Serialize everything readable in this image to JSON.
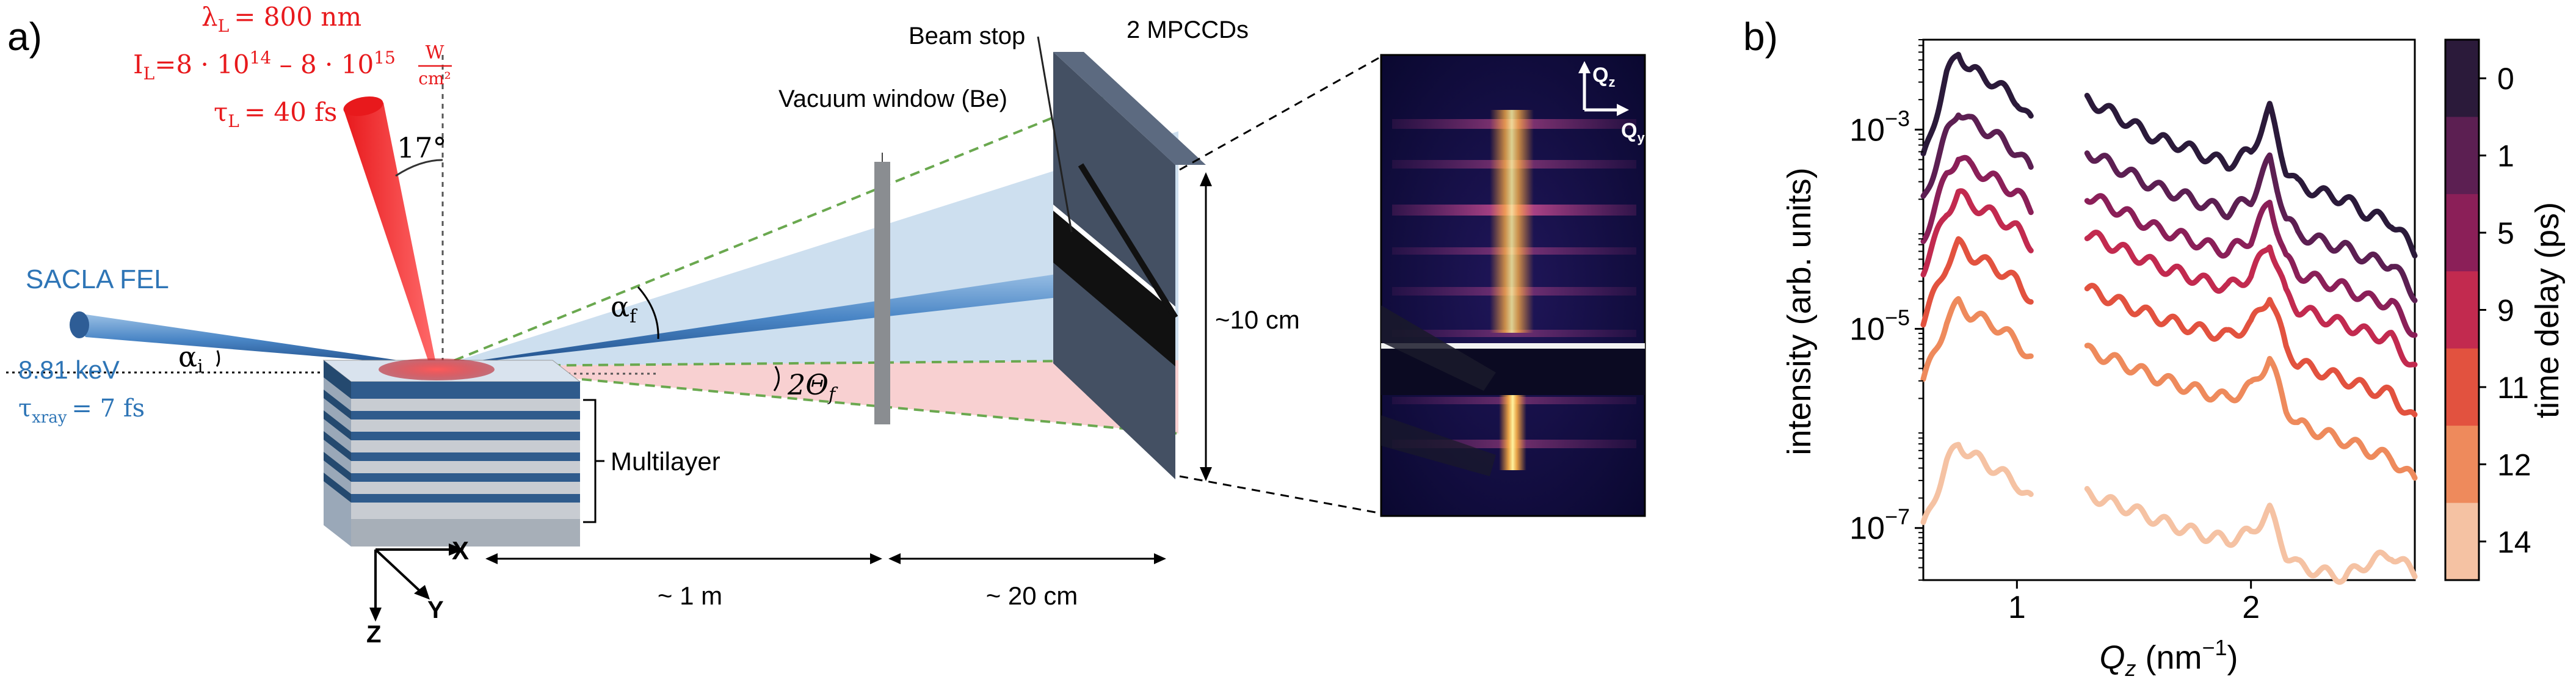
{
  "panel_a": {
    "panel_label": "a)",
    "laser": {
      "wavelength": "λ",
      "wavelength_sub": "L",
      "wavelength_value": "= 800 nm",
      "intensity_prefix": "I",
      "intensity_sub": "L",
      "intensity_value": "=8 · 10",
      "intensity_exp1": "14",
      "intensity_mid": " – 8 · 10",
      "intensity_exp2": "15",
      "intensity_unit_num": "W",
      "intensity_unit_den": "cm²",
      "pulse": "τ",
      "pulse_sub": "L",
      "pulse_value": "= 40 fs",
      "color": "#e8191c"
    },
    "angle_17": "17°",
    "fel_name": "SACLA FEL",
    "fel_energy": "8.81 keV",
    "fel_pulse": "τ",
    "fel_pulse_sub": "xray",
    "fel_pulse_value": "= 7 fs",
    "fel_color": "#2e75b6",
    "alpha_i": "α",
    "alpha_i_sub": "i",
    "alpha_f": "α",
    "alpha_f_sub": "f",
    "two_theta": "2Θ",
    "two_theta_sub": "f",
    "vacuum_window": "Vacuum window (Be)",
    "beam_stop": "Beam stop",
    "detector": "2 MPCCDs",
    "detector_size": "~10 cm",
    "multilayer": "Multilayer",
    "axis_x": "X",
    "axis_y": "Y",
    "axis_z": "Z",
    "distance_1": "~ 1 m",
    "distance_2": "~ 20 cm",
    "inset_qz": "Q",
    "inset_qz_sub": "z",
    "inset_qy": "Q",
    "inset_qy_sub": "y"
  },
  "panel_b": {
    "panel_label": "b)",
    "colorbar_label": "time delay (ps)",
    "chart_data": {
      "type": "line",
      "xlabel": "Q",
      "xlabel_sub": "z",
      "xlabel_unit": " (nm",
      "xlabel_exp": "−1",
      "xlabel_close": ")",
      "ylabel": "intensity (arb. units)",
      "yscale": "log",
      "xlim": [
        0.6,
        2.7
      ],
      "ylim": [
        3e-08,
        0.008
      ],
      "xticks": [
        1,
        2
      ],
      "xtick_labels": [
        "1",
        "2"
      ],
      "yticks": [
        0.001,
        1e-05,
        1e-07
      ],
      "ytick_base": "10",
      "ytick_exps": [
        "−3",
        "−5",
        "−7"
      ],
      "gap": [
        1.06,
        1.3
      ],
      "x": [
        0.6,
        0.7,
        0.75,
        0.8,
        0.9,
        1.0,
        1.06,
        1.3,
        1.4,
        1.5,
        1.6,
        1.7,
        1.8,
        1.9,
        2.0,
        2.08,
        2.15,
        2.2,
        2.3,
        2.4,
        2.5,
        2.6,
        2.7
      ],
      "series": [
        {
          "name": "0",
          "color": "#2b1a3a",
          "values": [
            0.0005,
            0.0035,
            0.006,
            0.004,
            0.003,
            0.002,
            0.0012,
            0.002,
            0.0015,
            0.0011,
            0.0008,
            0.0007,
            0.00055,
            0.00045,
            0.0006,
            0.0016,
            0.0004,
            0.00028,
            0.00023,
            0.0002,
            0.00014,
            0.00012,
            6e-05
          ]
        },
        {
          "name": "1",
          "color": "#5c1f52",
          "values": [
            0.0002,
            0.0009,
            0.0016,
            0.0012,
            0.0009,
            0.0006,
            0.0004,
            0.0006,
            0.00045,
            0.00034,
            0.00026,
            0.00022,
            0.00018,
            0.00015,
            0.0002,
            0.0005,
            0.00013,
            9e-05,
            7.5e-05,
            6.5e-05,
            5e-05,
            4.5e-05,
            2.2e-05
          ]
        },
        {
          "name": "5",
          "color": "#8b1f58",
          "values": [
            8e-05,
            0.00035,
            0.00055,
            0.00042,
            0.00032,
            0.00023,
            0.00016,
            0.00022,
            0.00017,
            0.00013,
            0.0001,
            8.5e-05,
            7e-05,
            6e-05,
            8e-05,
            0.00019,
            5e-05,
            3.6e-05,
            3e-05,
            2.6e-05,
            2e-05,
            1.8e-05,
            9e-06
          ]
        },
        {
          "name": "9",
          "color": "#c22a4f",
          "values": [
            4e-05,
            0.00015,
            0.00023,
            0.00018,
            0.00014,
            0.0001,
            7e-05,
            9e-05,
            7e-05,
            5.5e-05,
            4.3e-05,
            3.6e-05,
            3e-05,
            2.6e-05,
            3.4e-05,
            7.5e-05,
            2.2e-05,
            1.6e-05,
            1.3e-05,
            1.1e-05,
            9e-06,
            8e-06,
            4e-06
          ]
        },
        {
          "name": "11",
          "color": "#e2523f",
          "values": [
            1.2e-05,
            4.5e-05,
            7e-05,
            5.5e-05,
            4.2e-05,
            3e-05,
            2e-05,
            2.5e-05,
            2e-05,
            1.6e-05,
            1.3e-05,
            1.1e-05,
            9.5e-06,
            8.5e-06,
            1.1e-05,
            2.2e-05,
            6.5e-06,
            4.5e-06,
            3.7e-06,
            3.1e-06,
            2.5e-06,
            2.2e-06,
            1.2e-06
          ]
        },
        {
          "name": "12",
          "color": "#ee8a5c",
          "values": [
            3e-06,
            1.2e-05,
            1.8e-05,
            1.4e-05,
            1.1e-05,
            7.5e-06,
            5e-06,
            6e-06,
            5e-06,
            4e-06,
            3.2e-06,
            2.7e-06,
            2.3e-06,
            2e-06,
            2.6e-06,
            5e-06,
            1.6e-06,
            1.1e-06,
            9e-07,
            7.5e-07,
            6e-07,
            5e-07,
            3e-07
          ]
        },
        {
          "name": "14",
          "color": "#f5c2a3",
          "values": [
            1e-07,
            4.5e-07,
            7e-07,
            5.5e-07,
            4e-07,
            2.8e-07,
            1.9e-07,
            2.2e-07,
            1.8e-07,
            1.5e-07,
            1.2e-07,
            1e-07,
            8.5e-08,
            7.5e-08,
            9e-08,
            1.5e-07,
            5.5e-08,
            4.2e-08,
            3.6e-08,
            3.2e-08,
            4.5e-08,
            5.5e-08,
            3.5e-08
          ]
        }
      ]
    }
  }
}
